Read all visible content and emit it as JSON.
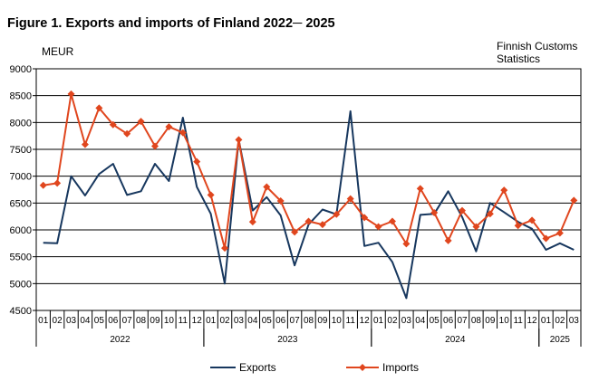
{
  "chart_data": {
    "type": "line",
    "title": "Figure 1. Exports and imports of Finland 2022─ 2025",
    "ylabel": "MEUR",
    "source_note": [
      "Finnish Customs",
      "Statistics"
    ],
    "ylim": [
      4500,
      9000
    ],
    "yticks": [
      4500,
      5000,
      5500,
      6000,
      6500,
      7000,
      7500,
      8000,
      8500,
      9000
    ],
    "grid": true,
    "legend_position": "bottom",
    "months": [
      "01",
      "02",
      "03",
      "04",
      "05",
      "06",
      "07",
      "08",
      "09",
      "10",
      "11",
      "12",
      "01",
      "02",
      "03",
      "04",
      "05",
      "06",
      "07",
      "08",
      "09",
      "10",
      "11",
      "12",
      "01",
      "02",
      "03",
      "04",
      "05",
      "06",
      "07",
      "08",
      "09",
      "10",
      "11",
      "12",
      "01",
      "02",
      "03"
    ],
    "years": [
      {
        "label": "2022",
        "start": 0,
        "count": 12
      },
      {
        "label": "2023",
        "start": 12,
        "count": 12
      },
      {
        "label": "2024",
        "start": 24,
        "count": 12
      },
      {
        "label": "2025",
        "start": 36,
        "count": 3
      }
    ],
    "series": [
      {
        "name": "Exports",
        "color": "#17375e",
        "marker": "none",
        "values": [
          5760,
          5750,
          7000,
          6640,
          7040,
          7230,
          6650,
          6720,
          7230,
          6910,
          8090,
          6800,
          6300,
          5000,
          7680,
          6360,
          6610,
          6270,
          5340,
          6100,
          6380,
          6290,
          8210,
          5700,
          5760,
          5400,
          4730,
          6280,
          6300,
          6720,
          6240,
          5600,
          6500,
          6330,
          6150,
          6020,
          5630,
          5750,
          5630
        ]
      },
      {
        "name": "Imports",
        "color": "#e0461e",
        "marker": "diamond",
        "values": [
          6830,
          6870,
          8530,
          7590,
          8270,
          7960,
          7790,
          8020,
          7560,
          7920,
          7810,
          7270,
          6650,
          5660,
          7680,
          6150,
          6800,
          6540,
          5960,
          6160,
          6100,
          6290,
          6580,
          6230,
          6060,
          6160,
          5740,
          6770,
          6320,
          5800,
          6360,
          6060,
          6300,
          6740,
          6080,
          6180,
          5840,
          5940,
          6550
        ]
      }
    ]
  }
}
